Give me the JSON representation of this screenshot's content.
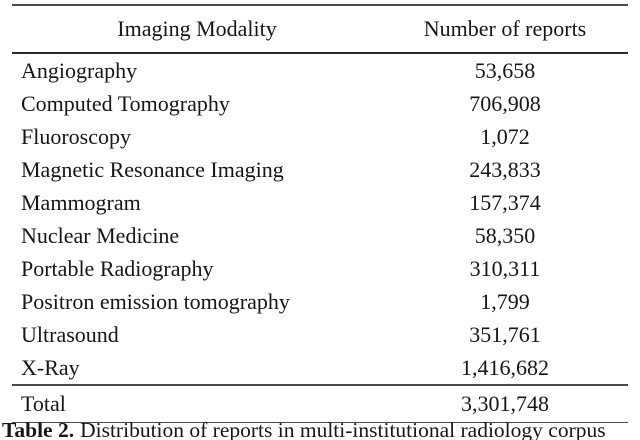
{
  "table": {
    "header": {
      "modality": "Imaging Modality",
      "reports": "Number of reports"
    },
    "rows": [
      {
        "modality": "Angiography",
        "reports": "53,658"
      },
      {
        "modality": "Computed Tomography",
        "reports": "706,908"
      },
      {
        "modality": "Fluoroscopy",
        "reports": "1,072"
      },
      {
        "modality": "Magnetic Resonance Imaging",
        "reports": "243,833"
      },
      {
        "modality": "Mammogram",
        "reports": "157,374"
      },
      {
        "modality": "Nuclear Medicine",
        "reports": "58,350"
      },
      {
        "modality": "Portable Radiography",
        "reports": "310,311"
      },
      {
        "modality": "Positron emission tomography",
        "reports": "1,799"
      },
      {
        "modality": "Ultrasound",
        "reports": "351,761"
      },
      {
        "modality": "X-Ray",
        "reports": "1,416,682"
      }
    ],
    "total": {
      "modality": "Total",
      "reports": "3,301,748"
    }
  },
  "caption": {
    "label": "Table 2.",
    "text": "Distribution of reports in multi-institutional radiology corpus"
  },
  "colors": {
    "text": "#161616",
    "rule_thick": "#2a2a2a",
    "rule_thin": "#4a4a4a",
    "background": "#ffffff"
  },
  "chart_data": {
    "type": "table",
    "title": "Table 2. Distribution of reports in multi-institutional radiology corpus",
    "columns": [
      "Imaging Modality",
      "Number of reports"
    ],
    "categories": [
      "Angiography",
      "Computed Tomography",
      "Fluoroscopy",
      "Magnetic Resonance Imaging",
      "Mammogram",
      "Nuclear Medicine",
      "Portable Radiography",
      "Positron emission tomography",
      "Ultrasound",
      "X-Ray",
      "Total"
    ],
    "values": [
      53658,
      706908,
      1072,
      243833,
      157374,
      58350,
      310311,
      1799,
      351761,
      1416682,
      3301748
    ]
  }
}
